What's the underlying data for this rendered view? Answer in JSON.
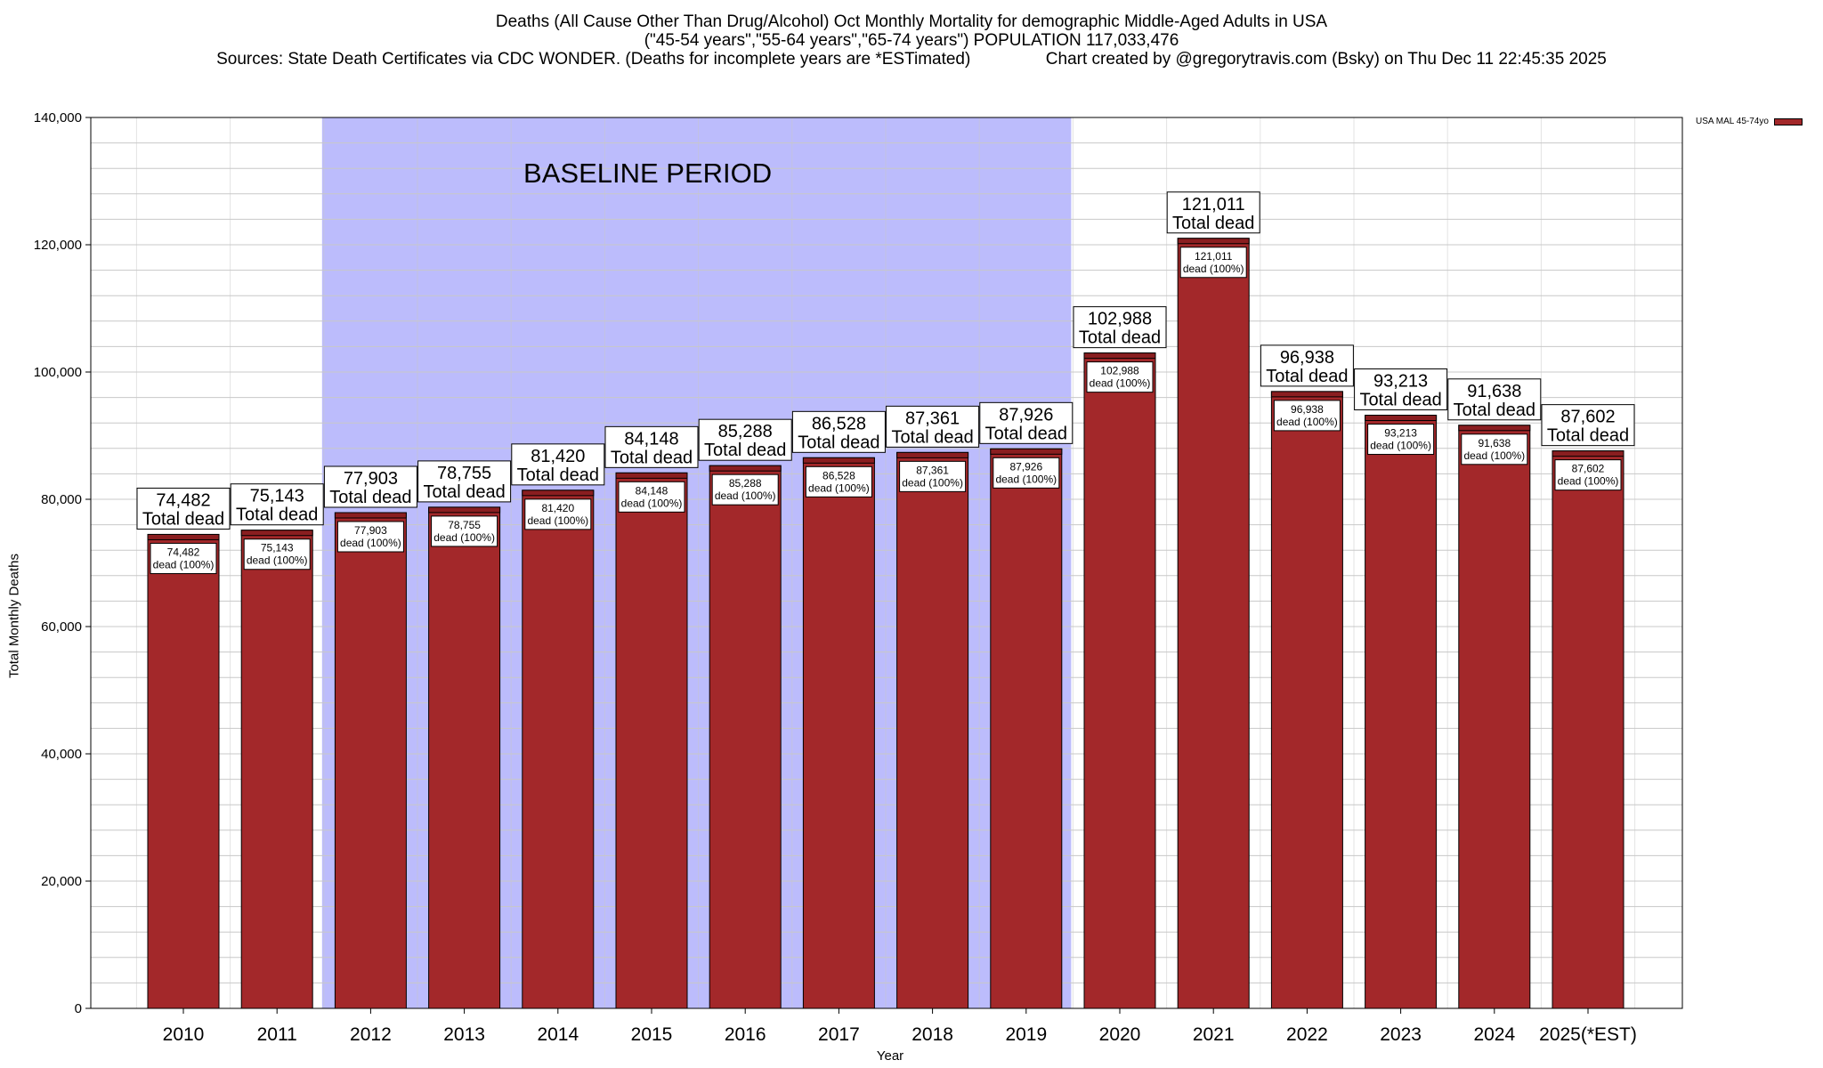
{
  "title_lines": [
    "Deaths (All Cause Other Than Drug/Alcohol) Oct Monthly Mortality for demographic Middle-Aged Adults in USA",
    "(\"45-54 years\",\"55-64 years\",\"65-74 years\") POPULATION 117,033,476",
    "Sources: State Death Certificates via CDC WONDER. (Deaths for incomplete years are *ESTimated)                Chart created by @gregorytravis.com (Bsky) on Thu Dec 11 22:45:35 2025"
  ],
  "colors": {
    "bar": "#a3282a",
    "bar_cap": "#8a1e20",
    "baseline_shade": "#bcbcfc",
    "grid": "#c8c8c8"
  },
  "chart_data": {
    "type": "bar",
    "xlabel": "Year",
    "ylabel": "Total Monthly Deaths",
    "ylim": [
      0,
      140000
    ],
    "y_ticks": [
      0,
      20000,
      40000,
      60000,
      80000,
      100000,
      120000,
      140000
    ],
    "y_tick_labels": [
      "0",
      "20,000",
      "40,000",
      "60,000",
      "80,000",
      "100,000",
      "120,000",
      "140,000"
    ],
    "grid": true,
    "legend": {
      "placement": "top-right",
      "entries": [
        "USA MAL 45-74yo"
      ]
    },
    "categories": [
      "2010",
      "2011",
      "2012",
      "2013",
      "2014",
      "2015",
      "2016",
      "2017",
      "2018",
      "2019",
      "2020",
      "2021",
      "2022",
      "2023",
      "2024",
      "2025(*EST)"
    ],
    "series": [
      {
        "name": "USA MAL 45-74yo",
        "values": [
          74482,
          75143,
          77903,
          78755,
          81420,
          84148,
          85288,
          86528,
          87361,
          87926,
          102988,
          121011,
          96938,
          93213,
          91638,
          87602
        ]
      }
    ],
    "value_labels": [
      "74,482",
      "75,143",
      "77,903",
      "78,755",
      "81,420",
      "84,148",
      "85,288",
      "86,528",
      "87,361",
      "87,926",
      "102,988",
      "121,011",
      "96,938",
      "93,213",
      "91,638",
      "87,602"
    ],
    "top_label_suffix": "Total dead",
    "inner_label_suffix": "dead (100%)",
    "annotations": [
      {
        "text": "BASELINE PERIOD",
        "x_range": [
          "2012",
          "2019"
        ]
      }
    ]
  }
}
